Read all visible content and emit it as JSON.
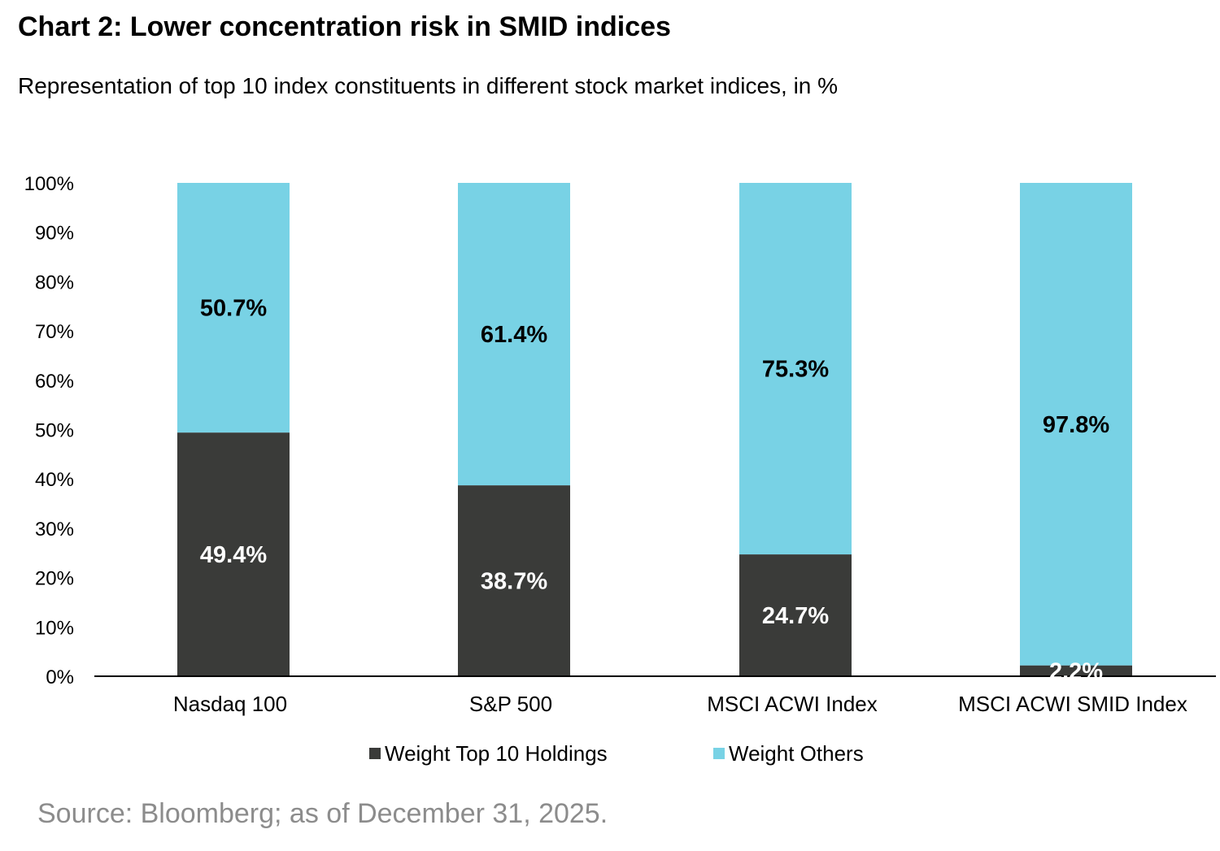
{
  "header": {
    "title": "Chart 2: Lower concentration risk in SMID indices",
    "subtitle": "Representation of top 10 index constituents in different stock market indices, in %"
  },
  "footer": {
    "source": "Source: Bloomberg; as of December 31, 2025."
  },
  "colors": {
    "top10": "#3a3b39",
    "others": "#78d2e5",
    "source_text": "#8c8c8c",
    "axis": "#000000"
  },
  "chart_data": {
    "type": "bar",
    "stacked": true,
    "categories": [
      "Nasdaq 100",
      "S&P 500",
      "MSCI ACWI Index",
      "MSCI ACWI SMID Index"
    ],
    "series": [
      {
        "name": "Weight Top 10 Holdings",
        "values": [
          49.4,
          38.7,
          24.7,
          2.2
        ],
        "labels": [
          "49.4%",
          "38.7%",
          "24.7%",
          "2.2%"
        ]
      },
      {
        "name": "Weight Others",
        "values": [
          50.7,
          61.4,
          75.3,
          97.8
        ],
        "labels": [
          "50.7%",
          "61.4%",
          "75.3%",
          "97.8%"
        ]
      }
    ],
    "ylim": [
      0,
      100
    ],
    "yticks": [
      "0%",
      "10%",
      "20%",
      "30%",
      "40%",
      "50%",
      "60%",
      "70%",
      "80%",
      "90%",
      "100%"
    ],
    "legend_position": "bottom",
    "grid": false
  }
}
